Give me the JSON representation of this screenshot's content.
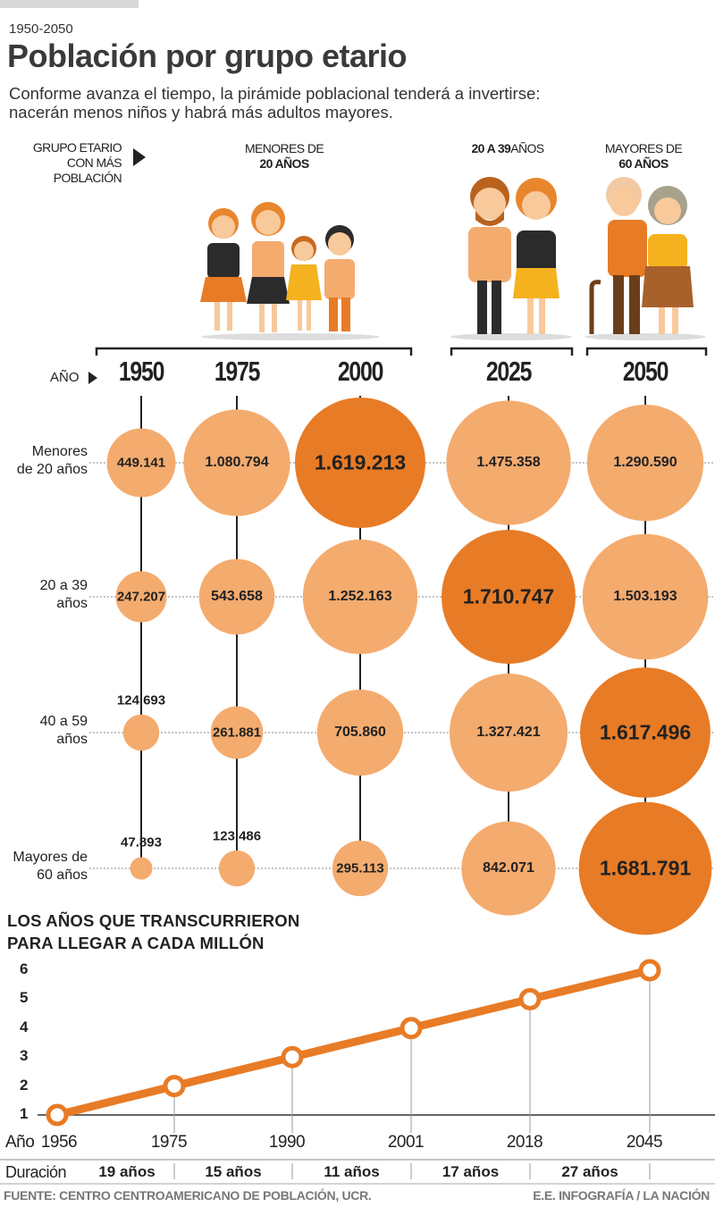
{
  "header": {
    "kicker": "1950-2050",
    "title": "Población por grupo etario",
    "subtitle_line1": "Conforme avanza el tiempo, la pirámide poblacional tenderá a invertirse:",
    "subtitle_line2": "nacerán menos niños y habrá más adultos mayores."
  },
  "legend": {
    "label_line1": "GRUPO ETARIO",
    "label_line2": "CON MÁS",
    "label_line3": "POBLACIÓN",
    "year_label": "AÑO"
  },
  "groups": [
    {
      "line1": "MENORES DE",
      "line2": "20 AÑOS"
    },
    {
      "bold": "20 A 39",
      "rest": "AÑOS"
    },
    {
      "line1": "MAYORES DE",
      "line2": "60 AÑOS"
    }
  ],
  "colors": {
    "light": "#f4ab6e",
    "dark": "#e87b26",
    "line": "#222222"
  },
  "chart_data": [
    {
      "type": "bubble",
      "title": "Población por grupo etario",
      "years": [
        "1950",
        "1975",
        "2000",
        "2025",
        "2050"
      ],
      "row_labels": [
        [
          "Menores",
          "de 20 años"
        ],
        [
          "20 a 39",
          "años"
        ],
        [
          "40 a 59",
          "años"
        ],
        [
          "Mayores de",
          "60 años"
        ]
      ],
      "values": [
        [
          449141,
          1080794,
          1619213,
          1475358,
          1290590
        ],
        [
          247207,
          543658,
          1252163,
          1710747,
          1503193
        ],
        [
          124693,
          261881,
          705860,
          1327421,
          1617496
        ],
        [
          47893,
          123486,
          295113,
          842071,
          1681791
        ]
      ],
      "labels": [
        [
          "449.141",
          "1.080.794",
          "1.619.213",
          "1.475.358",
          "1.290.590"
        ],
        [
          "247.207",
          "543.658",
          "1.252.163",
          "1.710.747",
          "1.503.193"
        ],
        [
          "124.693",
          "261.881",
          "705.860",
          "1.327.421",
          "1.617.496"
        ],
        [
          "47.893",
          "123.486",
          "295.113",
          "842.071",
          "1.681.791"
        ]
      ],
      "highlighted": [
        [
          false,
          false,
          true,
          false,
          false
        ],
        [
          false,
          false,
          false,
          true,
          false
        ],
        [
          false,
          false,
          false,
          false,
          true
        ],
        [
          false,
          false,
          false,
          false,
          true
        ]
      ]
    },
    {
      "type": "line",
      "title_line1": "LOS AÑOS QUE TRANSCURRIERON",
      "title_line2": "PARA LLEGAR A CADA MILLÓN",
      "x_prefix": "Año",
      "x": [
        "1956",
        "1975",
        "1990",
        "2001",
        "2018",
        "2045"
      ],
      "y": [
        1,
        2,
        3,
        4,
        5,
        6
      ],
      "yticks": [
        "1",
        "2",
        "3",
        "4",
        "5",
        "6"
      ],
      "ylim": [
        1,
        6
      ],
      "duration_label": "Duración",
      "durations": [
        "19 años",
        "15 años",
        "11 años",
        "17 años",
        "27 años"
      ]
    }
  ],
  "footer": {
    "source": "FUENTE: CENTRO CENTROAMERICANO DE POBLACIÓN, UCR.",
    "credit": "E.E. INFOGRAFÍA / LA NACIÓN"
  }
}
